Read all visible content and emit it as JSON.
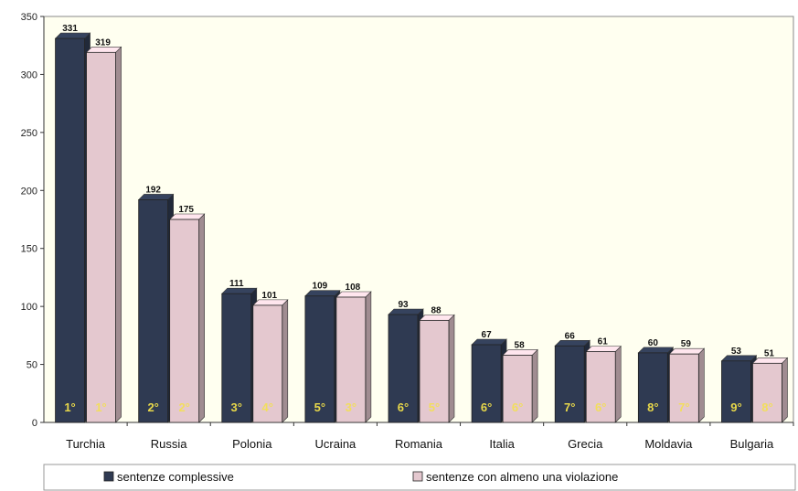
{
  "chart_data": {
    "type": "bar",
    "categories": [
      "Turchia",
      "Russia",
      "Polonia",
      "Ucraina",
      "Romania",
      "Italia",
      "Grecia",
      "Moldavia",
      "Bulgaria"
    ],
    "series": [
      {
        "name": "sentenze complessive",
        "values": [
          331,
          192,
          111,
          109,
          93,
          67,
          66,
          60,
          53
        ],
        "ranks": [
          "1°",
          "2°",
          "3°",
          "5°",
          "6°",
          "6°",
          "7°",
          "8°",
          "9°"
        ],
        "color": "#2f3a52",
        "rank_color": "#e8d84a"
      },
      {
        "name": "sentenze con almeno una violazione",
        "values": [
          319,
          175,
          101,
          108,
          88,
          58,
          61,
          59,
          51
        ],
        "ranks": [
          "1°",
          "2°",
          "4°",
          "3°",
          "5°",
          "6°",
          "6°",
          "7°",
          "8°"
        ],
        "color": "#e4c8cf",
        "rank_color": "#f2de5c"
      }
    ],
    "value_labels": [
      [
        "331",
        "319"
      ],
      [
        "192",
        "175"
      ],
      [
        "111",
        "101"
      ],
      [
        "109",
        "108"
      ],
      [
        "93",
        "88"
      ],
      [
        "67",
        "58"
      ],
      [
        "66",
        "61"
      ],
      [
        "60",
        "59"
      ],
      [
        "53",
        "51"
      ]
    ],
    "ylim": [
      0,
      350
    ],
    "yticks": [
      0,
      50,
      100,
      150,
      200,
      250,
      300,
      350
    ],
    "title": "",
    "xlabel": "",
    "ylabel": "",
    "grid": false,
    "legend_position": "bottom",
    "plot_background": "#fffff0"
  }
}
